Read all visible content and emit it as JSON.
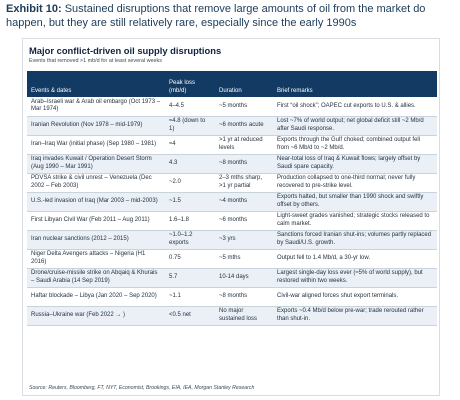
{
  "exhibit": {
    "label": "Exhibit 10:",
    "text": "Sustained disruptions that remove large amounts of oil from the market do happen, but they are still relatively rare, especially since the early 1990s"
  },
  "card": {
    "title": "Major conflict-driven oil supply disruptions",
    "subtitle": "Events that removed >1 mb/d for at least several weeks",
    "source": "Source: Reuters, Bloomberg, FT, NYT, Economist, Brookings, EIA, IEA, Morgan Stanley Research"
  },
  "table": {
    "headers": [
      "Events & dates",
      "Peak loss (mb/d)",
      "Duration",
      "Brief remarks"
    ],
    "rows": [
      [
        "Arab–Israeli war & Arab oil embargo (Oct 1973 – Mar 1974)",
        "4–4.5",
        "~5 months",
        "First “oil shock”; OAPEC cut exports to U.S. & allies."
      ],
      [
        "Iranian Revolution (Nov 1978 – mid-1979)",
        "≈4.8 (down to 1)",
        "~6 months acute",
        "Lost ~7% of world output; net global deficit still ~2 Mb/d after Saudi response."
      ],
      [
        "Iran–Iraq War (initial phase) (Sep 1980 – 1981)",
        "≈4",
        ">1 yr at reduced levels",
        "Exports through the Gulf choked; combined output fell from ~6 Mb/d to ~2 Mb/d."
      ],
      [
        "Iraq invades Kuwait / Operation Desert Storm (Aug 1990 – Mar 1991)",
        "4.3",
        "~8 months",
        "Near-total loss of Iraq & Kuwait flows; largely offset by Saudi spare capacity."
      ],
      [
        "PDVSA strike & civil unrest – Venezuela (Dec 2002 – Feb 2003)",
        "~2.0",
        "2–3 mths sharp, >1 yr partial",
        "Production collapsed to one-third normal; never fully recovered to pre-strike level."
      ],
      [
        "U.S.-led invasion of Iraq (Mar 2003 – mid-2003)",
        "~1.5",
        "~4 months",
        "Exports halted, but smaller than 1990 shock and swiftly offset by others."
      ],
      [
        "First Libyan Civil War (Feb 2011 – Aug 2011)",
        "1.6–1.8",
        "~6 months",
        "Light-sweet grades vanished; strategic stocks released to calm market."
      ],
      [
        "Iran nuclear sanctions (2012 – 2015)",
        "~1.0–1.2 exports",
        "~3 yrs",
        "Sanctions forced Iranian shut-ins; volumes partly replaced by Saudi/U.S. growth."
      ],
      [
        "Niger Delta Avengers attacks – Nigeria (H1 2016)",
        "0.75",
        "~5 mths",
        "Output fell to 1.4 Mb/d, a 30-yr low."
      ],
      [
        "Drone/cruise-missile strike on Abqaiq & Khurais – Saudi Arabia (14 Sep 2019)",
        "5.7",
        "10-14 days",
        "Largest single-day loss ever (≈5% of world supply), but restored within two weeks."
      ],
      [
        "Haftar blockade – Libya (Jan 2020 – Sep 2020)",
        "~1.1",
        "~8 months",
        "Civil-war aligned forces shut export terminals."
      ],
      [
        "Russia–Ukraine war (Feb 2022 → )",
        "<0.5 net",
        "No major sustained loss",
        "Exports ~0.4 Mb/d below pre-war; trade rerouted rather than shut-in."
      ]
    ]
  }
}
